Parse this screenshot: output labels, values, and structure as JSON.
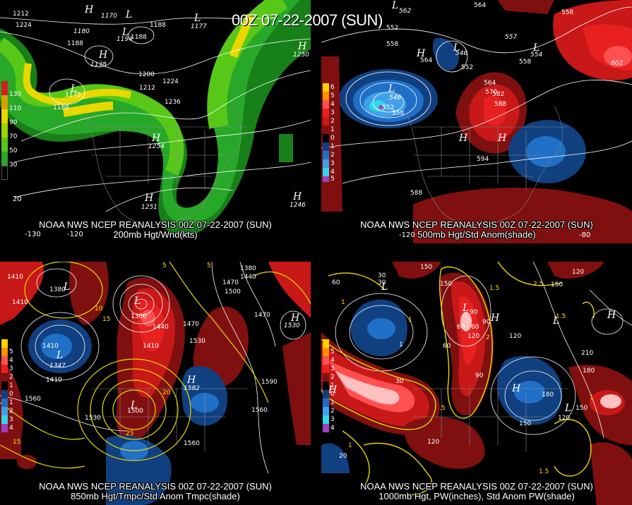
{
  "timestamp": "00Z 07-22-2007 (SUN)",
  "panels": [
    {
      "id": "p1",
      "caption_line1": "NOAA NWS NCEP REANALYSIS 00Z 07-22-2007 (SUN)",
      "caption_line2": "200mb Hgt/Wnd(kts)",
      "legend": [
        "130",
        "110",
        "90",
        "70",
        "50",
        "30"
      ],
      "legend_colors": [
        "#d8a000",
        "#e8d800",
        "#98d800",
        "#58c818",
        "#28a828",
        "#188018"
      ],
      "contour_labels": [
        "1212",
        "1224",
        "1188",
        "1180",
        "1138",
        "1188",
        "1188",
        "1177",
        "1170",
        "1200",
        "1212",
        "1224",
        "1236",
        "1188",
        "1175",
        "1194",
        "1250",
        "1254",
        "1251",
        "1246"
      ],
      "centers": [
        "L",
        "L",
        "L",
        "H",
        "H",
        "H",
        "H",
        "H",
        "H",
        "H"
      ],
      "lon_labels": [
        "-130",
        "-120",
        "20"
      ]
    },
    {
      "id": "p2",
      "caption_line1": "NOAA NWS NCEP REANALYSIS 00Z 07-22-2007 (SUN)",
      "caption_line2": "500mb Hgt/Std Anom(shade)",
      "legend": [
        "6",
        "5",
        "4",
        "3",
        "2",
        "1",
        "0",
        "1",
        "2",
        "3",
        "4",
        "5"
      ],
      "legend_colors": [
        "#ffd000",
        "#ff9000",
        "#ff5050",
        "#e82020",
        "#c81818",
        "#801010",
        "#000000",
        "#104080",
        "#2070c8",
        "#40a0e8",
        "#30d8e8",
        "#a040c0"
      ],
      "contour_labels": [
        "564",
        "558",
        "552",
        "558",
        "564",
        "552",
        "546",
        "552",
        "558",
        "564",
        "570",
        "582",
        "588",
        "594",
        "588",
        "552",
        "546",
        "564",
        "558",
        "552",
        "558",
        "602"
      ],
      "centers": [
        "L",
        "L",
        "L",
        "L",
        "H",
        "H",
        "H"
      ],
      "lon_labels": [
        "-120",
        "-80"
      ]
    },
    {
      "id": "p3",
      "caption_line1": "NOAA NWS NCEP REANALYSIS 00Z 07-22-2007 (SUN)",
      "caption_line2": "850mb Hgt/Tmpc/Std Anom Tmpc(shade)",
      "legend": [
        "5",
        "4",
        "3",
        "2",
        "1",
        "0",
        "1",
        "2",
        "3",
        "4",
        "5"
      ],
      "legend_colors": [
        "#ffd000",
        "#ff9000",
        "#ff5050",
        "#e82020",
        "#801010",
        "#000000",
        "#104080",
        "#2070c8",
        "#40a0e8",
        "#30d8e8",
        "#a040c0"
      ],
      "contour_labels": [
        "1410",
        "1380",
        "1410",
        "1440",
        "1410",
        "1347",
        "1410",
        "1560",
        "1530",
        "1500",
        "1410",
        "1530",
        "1560",
        "1590",
        "1560",
        "1560",
        "1582",
        "1470",
        "1410",
        "1500",
        "1380",
        "1440",
        "1470",
        "1470",
        "1530"
      ],
      "temp_labels": [
        "5",
        "10",
        "15",
        "20",
        "25",
        "15",
        "5"
      ],
      "centers": [
        "L",
        "L",
        "L",
        "L",
        "H",
        "H"
      ]
    },
    {
      "id": "p4",
      "caption_line1": "NOAA NWS NCEP REANALYSIS 00Z 07-22-2007 (SUN)",
      "caption_line2": "1000mb Hgt, PW(inches), Std Anom PW(shade)",
      "legend": [
        "5",
        "4",
        "3",
        "2",
        "1",
        "0",
        "1",
        "2",
        "3",
        "4",
        "5"
      ],
      "legend_colors": [
        "#ffd000",
        "#ff9000",
        "#ff5050",
        "#e82020",
        "#801010",
        "#000000",
        "#104080",
        "#2070c8",
        "#40a0e8",
        "#30d8e8",
        "#a040c0"
      ],
      "contour_labels": [
        "60",
        "30",
        "1",
        "150",
        "150",
        "30",
        "120",
        "90",
        "60",
        "60",
        "120",
        "150",
        "180",
        "210",
        "180",
        "150",
        "120",
        "120",
        "60",
        "120",
        "150",
        "30",
        "90",
        "90",
        "20"
      ],
      "pw_labels": [
        "1",
        "1.5",
        "2",
        "2.5",
        "1",
        ".5",
        "1.5",
        "1",
        "1.5",
        "1"
      ],
      "centers": [
        "L",
        "L",
        "L",
        "L",
        "H",
        "H",
        "H",
        "H"
      ]
    }
  ]
}
